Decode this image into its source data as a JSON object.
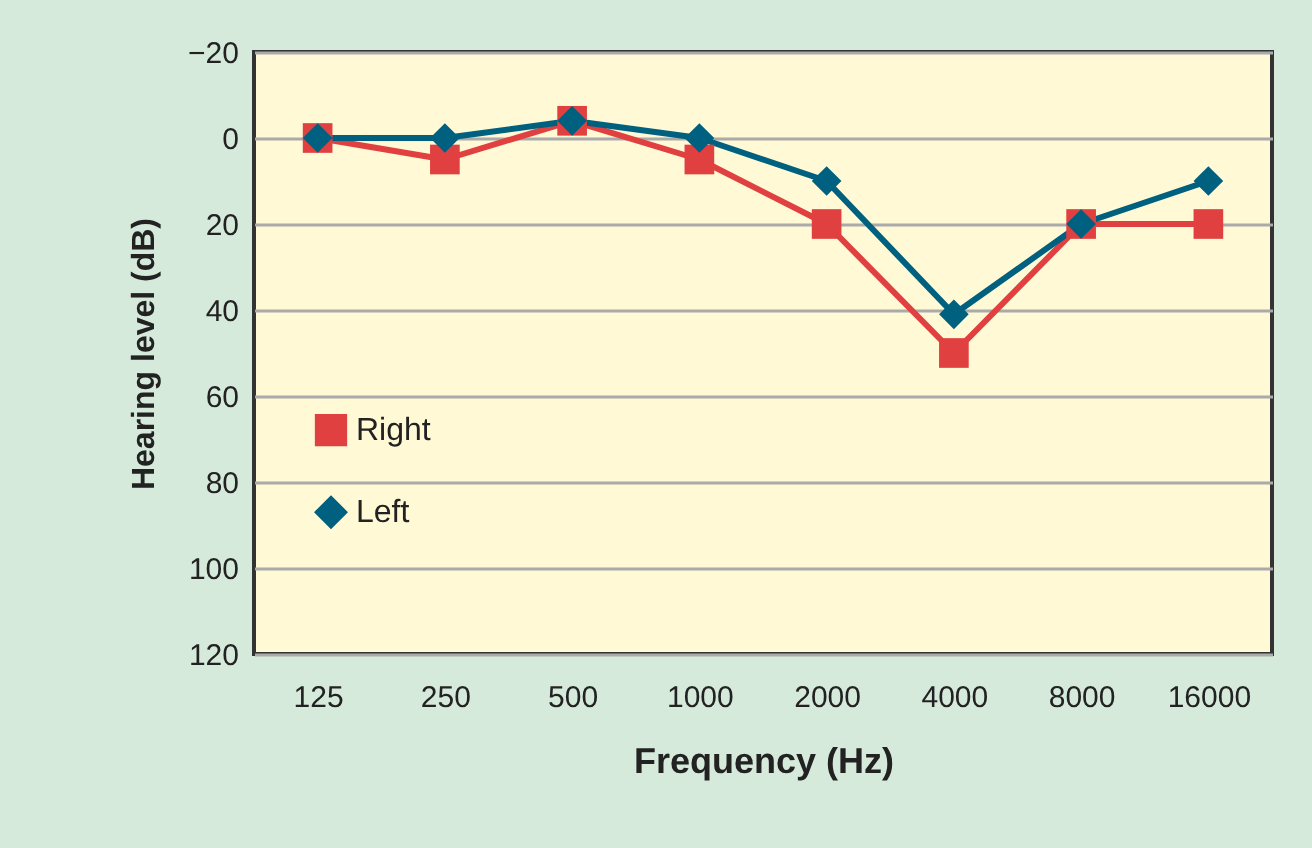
{
  "chart_data": {
    "type": "line",
    "xlabel": "Frequency (Hz)",
    "ylabel": "Hearing level (dB)",
    "categories": [
      "125",
      "250",
      "500",
      "1000",
      "2000",
      "4000",
      "8000",
      "16000"
    ],
    "series": [
      {
        "name": "Right",
        "color": "#e04040",
        "marker": "square",
        "values": [
          0,
          5,
          -4,
          5,
          20,
          50,
          20,
          20
        ]
      },
      {
        "name": "Left",
        "color": "#00607f",
        "marker": "diamond",
        "values": [
          0,
          0,
          -4,
          0,
          10,
          41,
          20,
          10
        ]
      }
    ],
    "ylim": [
      120,
      -20
    ],
    "yticks": [
      -20,
      0,
      20,
      40,
      60,
      80,
      100,
      120
    ],
    "grid": "y",
    "legend": "left"
  }
}
